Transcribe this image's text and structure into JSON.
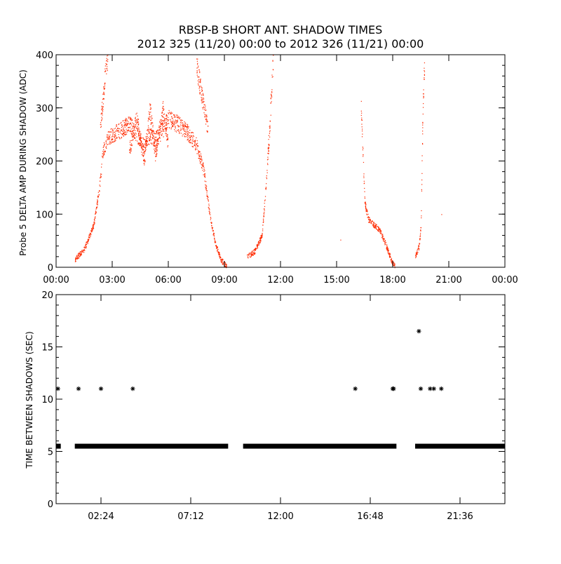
{
  "header": {
    "title_line1": "RBSP-B SHORT ANT. SHADOW TIMES",
    "title_line2": "2012 325 (11/20) 00:00 to 2012 326 (11/21) 00:00"
  },
  "colors": {
    "scatter_red": "#ff2a00",
    "axis": "#000000"
  },
  "chart_data": [
    {
      "type": "scatter",
      "ylabel": "Probe 5 DELTA AMP DURING SHADOW (ADC)",
      "xlim_hours": [
        0,
        24
      ],
      "ylim": [
        0,
        400
      ],
      "x_ticks": [
        "00:00",
        "03:00",
        "06:00",
        "09:00",
        "12:00",
        "15:00",
        "18:00",
        "21:00",
        "00:00"
      ],
      "y_ticks": [
        "0",
        "100",
        "200",
        "300",
        "400"
      ],
      "series": [
        {
          "color": "#ff2a00",
          "segments": [
            {
              "x": [
                1.0,
                1.5,
                2.0,
                2.3,
                2.5,
                2.7,
                3.0,
                3.5,
                3.9
              ],
              "y": [
                15,
                35,
                80,
                150,
                220,
                240,
                250,
                260,
                270
              ]
            },
            {
              "x": [
                2.35,
                2.55,
                2.75
              ],
              "y": [
                260,
                340,
                400
              ]
            },
            {
              "x": [
                3.9,
                4.3,
                4.7,
                5.0,
                5.3,
                5.7,
                6.0
              ],
              "y": [
                270,
                250,
                230,
                250,
                240,
                260,
                280
              ]
            },
            {
              "x": [
                3.9,
                4.3,
                4.7,
                5.0,
                5.3,
                5.7,
                6.0
              ],
              "y": [
                220,
                280,
                200,
                300,
                210,
                300,
                220
              ]
            },
            {
              "x": [
                6.0,
                6.5,
                7.0,
                7.5,
                7.9,
                8.2,
                8.5,
                8.8,
                9.1
              ],
              "y": [
                280,
                270,
                255,
                230,
                180,
                100,
                45,
                15,
                2
              ]
            },
            {
              "x": [
                7.5,
                7.8,
                8.1
              ],
              "y": [
                380,
                320,
                260
              ]
            },
            {
              "x": [
                10.2,
                10.6,
                11.0,
                11.2,
                11.4,
                11.6
              ],
              "y": [
                20,
                30,
                60,
                150,
                260,
                400
              ]
            },
            {
              "x": [
                16.3,
                16.5,
                16.7,
                17.0,
                17.3,
                17.6,
                17.9,
                18.1
              ],
              "y": [
                300,
                120,
                90,
                80,
                70,
                45,
                15,
                2
              ]
            },
            {
              "x": [
                19.2,
                19.4,
                19.5,
                19.6,
                19.7
              ],
              "y": [
                20,
                40,
                80,
                300,
                400
              ]
            },
            {
              "x": [
                15.2,
                20.6
              ],
              "y": [
                52,
                100
              ]
            }
          ]
        }
      ]
    },
    {
      "type": "scatter",
      "ylabel": "TIME BETWEEN SHADOWS (SEC)",
      "xlim_hours": [
        0,
        24
      ],
      "ylim": [
        0,
        20
      ],
      "x_ticks": [
        "02:24",
        "07:12",
        "12:00",
        "16:48",
        "21:36"
      ],
      "y_ticks": [
        "0",
        "5",
        "10",
        "15",
        "20"
      ],
      "marker": "asterisk",
      "series": [
        {
          "color": "#000000",
          "baseline_value": 5.5,
          "baseline_ranges": [
            [
              0.0,
              0.25
            ],
            [
              1.0,
              9.2
            ],
            [
              10.0,
              18.2
            ],
            [
              19.2,
              24.0
            ]
          ],
          "points": {
            "x": [
              0.1,
              1.2,
              2.4,
              4.1,
              16.0,
              18.0,
              18.05,
              19.4,
              19.5,
              20.0,
              20.2,
              20.6
            ],
            "y": [
              11,
              11,
              11,
              11,
              11,
              11,
              11,
              16.5,
              11,
              11,
              11,
              11
            ]
          }
        }
      ]
    }
  ]
}
